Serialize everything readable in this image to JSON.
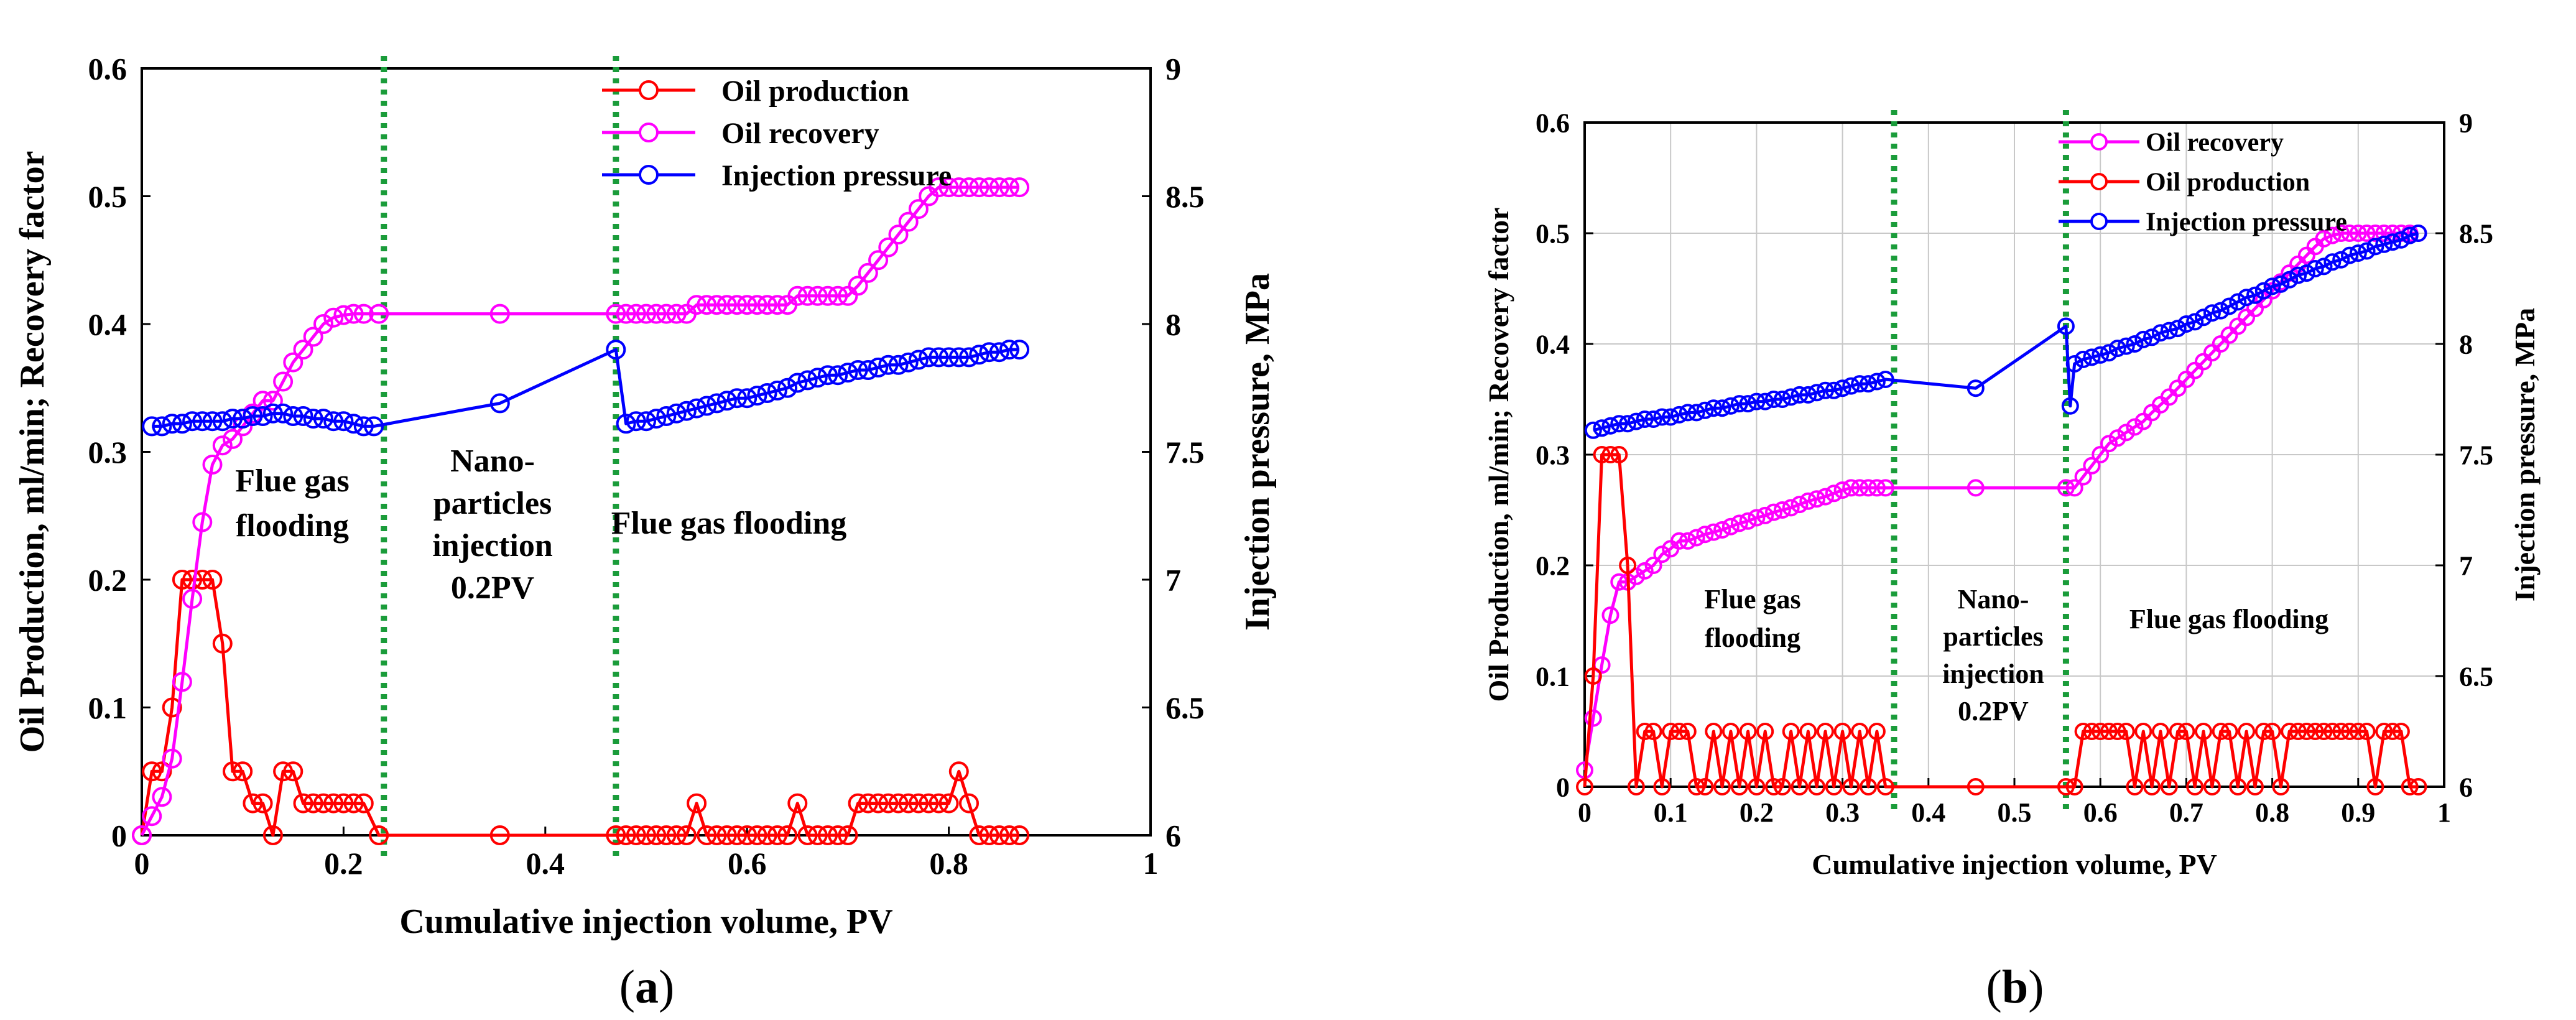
{
  "figure": {
    "panels": [
      {
        "id": "a",
        "panel_label_open": "(",
        "panel_label_letter": "a",
        "panel_label_close": ")"
      },
      {
        "id": "b",
        "panel_label_open": "(",
        "panel_label_letter": "b",
        "panel_label_close": ")"
      }
    ]
  },
  "chart_data": [
    {
      "type": "line",
      "panel": "a",
      "xlabel": "Cumulative injection volume, PV",
      "ylabel": "Oil Production, ml/min; Recovery factor",
      "y2label": "Injection pressure, MPa",
      "xlim": [
        0,
        1
      ],
      "ylim": [
        0,
        0.6
      ],
      "y2lim": [
        6,
        9
      ],
      "xticks": [
        "0",
        "0.2",
        "0.4",
        "0.6",
        "0.8",
        "1"
      ],
      "yticks": [
        "0",
        "0.1",
        "0.2",
        "0.3",
        "0.4",
        "0.5",
        "0.6"
      ],
      "y2ticks": [
        "6",
        "6.5",
        "7",
        "7.5",
        "8",
        "8.5",
        "9"
      ],
      "grid": false,
      "legend_position": "top-center",
      "dividers": [
        0.24,
        0.47
      ],
      "regions": [
        {
          "lines": [
            "Flue gas",
            "flooding"
          ]
        },
        {
          "lines": [
            "Nano-",
            "particles",
            "injection",
            "0.2PV"
          ]
        },
        {
          "lines": [
            "Flue gas flooding"
          ]
        }
      ],
      "legend": [
        "Oil production",
        "Oil recovery",
        "Injection pressure"
      ],
      "series": [
        {
          "name": "Oil production",
          "color": "#ff0000",
          "axis": "left",
          "x": [
            0,
            0.01,
            0.02,
            0.03,
            0.04,
            0.05,
            0.06,
            0.07,
            0.08,
            0.09,
            0.1,
            0.11,
            0.12,
            0.13,
            0.14,
            0.15,
            0.16,
            0.17,
            0.18,
            0.19,
            0.2,
            0.21,
            0.22,
            0.235,
            0.355,
            0.47,
            0.48,
            0.49,
            0.5,
            0.51,
            0.52,
            0.53,
            0.54,
            0.55,
            0.56,
            0.57,
            0.58,
            0.59,
            0.6,
            0.61,
            0.62,
            0.63,
            0.64,
            0.65,
            0.66,
            0.67,
            0.68,
            0.69,
            0.7,
            0.71,
            0.72,
            0.73,
            0.74,
            0.75,
            0.76,
            0.77,
            0.78,
            0.79,
            0.8,
            0.81,
            0.82,
            0.83,
            0.84,
            0.85,
            0.86,
            0.87
          ],
          "values": [
            0,
            0.05,
            0.05,
            0.1,
            0.2,
            0.2,
            0.2,
            0.2,
            0.15,
            0.05,
            0.05,
            0.025,
            0.025,
            0,
            0.05,
            0.05,
            0.025,
            0.025,
            0.025,
            0.025,
            0.025,
            0.025,
            0.025,
            0,
            0,
            0,
            0,
            0,
            0,
            0,
            0,
            0,
            0,
            0.025,
            0,
            0,
            0,
            0,
            0,
            0,
            0,
            0,
            0,
            0.025,
            0,
            0,
            0,
            0,
            0,
            0.025,
            0.025,
            0.025,
            0.025,
            0.025,
            0.025,
            0.025,
            0.025,
            0.025,
            0.025,
            0.05,
            0.025,
            0,
            0,
            0,
            0,
            0
          ]
        },
        {
          "name": "Oil recovery",
          "color": "#ff00ff",
          "axis": "left",
          "x": [
            0,
            0.01,
            0.02,
            0.03,
            0.04,
            0.05,
            0.06,
            0.07,
            0.08,
            0.09,
            0.1,
            0.11,
            0.12,
            0.13,
            0.14,
            0.15,
            0.16,
            0.17,
            0.18,
            0.19,
            0.2,
            0.21,
            0.22,
            0.235,
            0.355,
            0.47,
            0.48,
            0.49,
            0.5,
            0.51,
            0.52,
            0.53,
            0.54,
            0.55,
            0.56,
            0.57,
            0.58,
            0.59,
            0.6,
            0.61,
            0.62,
            0.63,
            0.64,
            0.65,
            0.66,
            0.67,
            0.68,
            0.69,
            0.7,
            0.71,
            0.72,
            0.73,
            0.74,
            0.75,
            0.76,
            0.77,
            0.78,
            0.79,
            0.8,
            0.81,
            0.82,
            0.83,
            0.84,
            0.85,
            0.86,
            0.87
          ],
          "values": [
            0,
            0.015,
            0.03,
            0.06,
            0.12,
            0.185,
            0.245,
            0.29,
            0.305,
            0.31,
            0.32,
            0.33,
            0.34,
            0.34,
            0.355,
            0.37,
            0.38,
            0.39,
            0.4,
            0.405,
            0.407,
            0.408,
            0.408,
            0.408,
            0.408,
            0.408,
            0.408,
            0.408,
            0.408,
            0.408,
            0.408,
            0.408,
            0.408,
            0.415,
            0.415,
            0.415,
            0.415,
            0.415,
            0.415,
            0.415,
            0.415,
            0.415,
            0.415,
            0.422,
            0.422,
            0.422,
            0.422,
            0.422,
            0.422,
            0.43,
            0.44,
            0.45,
            0.46,
            0.47,
            0.48,
            0.49,
            0.5,
            0.507,
            0.507,
            0.507,
            0.507,
            0.507,
            0.507,
            0.507,
            0.507,
            0.507
          ]
        },
        {
          "name": "Injection pressure",
          "color": "#0000ff",
          "axis": "right",
          "x": [
            0.01,
            0.02,
            0.03,
            0.04,
            0.05,
            0.06,
            0.07,
            0.08,
            0.09,
            0.1,
            0.11,
            0.12,
            0.13,
            0.14,
            0.15,
            0.16,
            0.17,
            0.18,
            0.19,
            0.2,
            0.21,
            0.22,
            0.23,
            0.355,
            0.47,
            0.48,
            0.49,
            0.5,
            0.51,
            0.52,
            0.53,
            0.54,
            0.55,
            0.56,
            0.57,
            0.58,
            0.59,
            0.6,
            0.61,
            0.62,
            0.63,
            0.64,
            0.65,
            0.66,
            0.67,
            0.68,
            0.69,
            0.7,
            0.71,
            0.72,
            0.73,
            0.74,
            0.75,
            0.76,
            0.77,
            0.78,
            0.79,
            0.8,
            0.81,
            0.82,
            0.83,
            0.84,
            0.85,
            0.86,
            0.87
          ],
          "values": [
            7.6,
            7.6,
            7.61,
            7.61,
            7.62,
            7.62,
            7.62,
            7.62,
            7.63,
            7.63,
            7.64,
            7.64,
            7.65,
            7.65,
            7.64,
            7.64,
            7.63,
            7.63,
            7.62,
            7.62,
            7.61,
            7.6,
            7.6,
            7.69,
            7.9,
            7.61,
            7.62,
            7.62,
            7.63,
            7.64,
            7.65,
            7.66,
            7.67,
            7.68,
            7.69,
            7.7,
            7.71,
            7.71,
            7.72,
            7.73,
            7.74,
            7.75,
            7.77,
            7.78,
            7.79,
            7.8,
            7.8,
            7.81,
            7.82,
            7.82,
            7.83,
            7.84,
            7.84,
            7.85,
            7.86,
            7.87,
            7.87,
            7.87,
            7.87,
            7.87,
            7.88,
            7.89,
            7.89,
            7.9,
            7.9
          ]
        }
      ]
    },
    {
      "type": "line",
      "panel": "b",
      "xlabel": "Cumulative injection volume, PV",
      "ylabel": "Oil Production, ml/min; Recovery factor",
      "y2label": "Injection pressure, MPa",
      "xlim": [
        0,
        1
      ],
      "ylim": [
        0,
        0.6
      ],
      "y2lim": [
        6,
        9
      ],
      "xticks": [
        "0",
        "0.1",
        "0.2",
        "0.3",
        "0.4",
        "0.5",
        "0.6",
        "0.7",
        "0.8",
        "0.9",
        "1"
      ],
      "yticks": [
        "0",
        "0.1",
        "0.2",
        "0.3",
        "0.4",
        "0.5",
        "0.6"
      ],
      "y2ticks": [
        "6",
        "6.5",
        "7",
        "7.5",
        "8",
        "8.5",
        "9"
      ],
      "grid": true,
      "legend_position": "top-center",
      "dividers": [
        0.36,
        0.56
      ],
      "regions": [
        {
          "lines": [
            "Flue gas",
            "flooding"
          ]
        },
        {
          "lines": [
            "Nano-",
            "particles",
            "injection",
            "0.2PV"
          ]
        },
        {
          "lines": [
            "Flue gas flooding"
          ]
        }
      ],
      "legend": [
        "Oil recovery",
        "Oil production",
        "Injection pressure"
      ],
      "series": [
        {
          "name": "Oil recovery",
          "color": "#ff00ff",
          "axis": "left",
          "x": [
            0,
            0.01,
            0.02,
            0.03,
            0.04,
            0.05,
            0.06,
            0.07,
            0.08,
            0.09,
            0.1,
            0.11,
            0.12,
            0.13,
            0.14,
            0.15,
            0.16,
            0.17,
            0.18,
            0.19,
            0.2,
            0.21,
            0.22,
            0.23,
            0.24,
            0.25,
            0.26,
            0.27,
            0.28,
            0.29,
            0.3,
            0.31,
            0.32,
            0.33,
            0.34,
            0.35,
            0.455,
            0.56,
            0.57,
            0.58,
            0.59,
            0.6,
            0.61,
            0.62,
            0.63,
            0.64,
            0.65,
            0.66,
            0.67,
            0.68,
            0.69,
            0.7,
            0.71,
            0.72,
            0.73,
            0.74,
            0.75,
            0.76,
            0.77,
            0.78,
            0.79,
            0.8,
            0.81,
            0.82,
            0.83,
            0.84,
            0.85,
            0.86,
            0.87,
            0.88,
            0.89,
            0.9,
            0.91,
            0.92,
            0.93,
            0.94,
            0.95,
            0.96,
            0.97
          ],
          "values": [
            0.015,
            0.062,
            0.11,
            0.155,
            0.185,
            0.185,
            0.19,
            0.195,
            0.2,
            0.21,
            0.215,
            0.222,
            0.222,
            0.225,
            0.228,
            0.23,
            0.232,
            0.235,
            0.238,
            0.24,
            0.243,
            0.245,
            0.248,
            0.25,
            0.252,
            0.255,
            0.258,
            0.26,
            0.262,
            0.265,
            0.268,
            0.27,
            0.27,
            0.27,
            0.27,
            0.27,
            0.27,
            0.27,
            0.27,
            0.28,
            0.29,
            0.3,
            0.31,
            0.315,
            0.32,
            0.325,
            0.33,
            0.338,
            0.345,
            0.352,
            0.36,
            0.368,
            0.376,
            0.384,
            0.392,
            0.4,
            0.408,
            0.416,
            0.424,
            0.432,
            0.44,
            0.448,
            0.456,
            0.464,
            0.472,
            0.48,
            0.488,
            0.495,
            0.498,
            0.5,
            0.5,
            0.5,
            0.5,
            0.5,
            0.5,
            0.5,
            0.5,
            0.5,
            0.5
          ]
        },
        {
          "name": "Oil production",
          "color": "#ff0000",
          "axis": "left",
          "x": [
            0,
            0.01,
            0.02,
            0.03,
            0.04,
            0.05,
            0.06,
            0.07,
            0.08,
            0.09,
            0.1,
            0.11,
            0.12,
            0.13,
            0.14,
            0.15,
            0.16,
            0.17,
            0.18,
            0.19,
            0.2,
            0.21,
            0.22,
            0.23,
            0.24,
            0.25,
            0.26,
            0.27,
            0.28,
            0.29,
            0.3,
            0.31,
            0.32,
            0.33,
            0.34,
            0.35,
            0.455,
            0.56,
            0.57,
            0.58,
            0.59,
            0.6,
            0.61,
            0.62,
            0.63,
            0.64,
            0.65,
            0.66,
            0.67,
            0.68,
            0.69,
            0.7,
            0.71,
            0.72,
            0.73,
            0.74,
            0.75,
            0.76,
            0.77,
            0.78,
            0.79,
            0.8,
            0.81,
            0.82,
            0.83,
            0.84,
            0.85,
            0.86,
            0.87,
            0.88,
            0.89,
            0.9,
            0.91,
            0.92,
            0.93,
            0.94,
            0.95,
            0.96,
            0.97
          ],
          "values": [
            0,
            0.1,
            0.3,
            0.3,
            0.3,
            0.2,
            0,
            0.05,
            0.05,
            0,
            0.05,
            0.05,
            0.05,
            0,
            0,
            0.05,
            0,
            0.05,
            0,
            0.05,
            0,
            0.05,
            0,
            0,
            0.05,
            0,
            0.05,
            0,
            0.05,
            0,
            0.05,
            0,
            0.05,
            0,
            0.05,
            0,
            0,
            0,
            0,
            0.05,
            0.05,
            0.05,
            0.05,
            0.05,
            0.05,
            0,
            0.05,
            0,
            0.05,
            0,
            0.05,
            0.05,
            0,
            0.05,
            0,
            0.05,
            0.05,
            0,
            0.05,
            0,
            0.05,
            0.05,
            0,
            0.05,
            0.05,
            0.05,
            0.05,
            0.05,
            0.05,
            0.05,
            0.05,
            0.05,
            0.05,
            0,
            0.05,
            0.05,
            0.05,
            0,
            0
          ]
        },
        {
          "name": "Injection pressure",
          "color": "#0000ff",
          "axis": "right",
          "x": [
            0.01,
            0.02,
            0.03,
            0.04,
            0.05,
            0.06,
            0.07,
            0.08,
            0.09,
            0.1,
            0.11,
            0.12,
            0.13,
            0.14,
            0.15,
            0.16,
            0.17,
            0.18,
            0.19,
            0.2,
            0.21,
            0.22,
            0.23,
            0.24,
            0.25,
            0.26,
            0.27,
            0.28,
            0.29,
            0.3,
            0.31,
            0.32,
            0.33,
            0.34,
            0.35,
            0.455,
            0.56,
            0.565,
            0.57,
            0.58,
            0.59,
            0.6,
            0.61,
            0.62,
            0.63,
            0.64,
            0.65,
            0.66,
            0.67,
            0.68,
            0.69,
            0.7,
            0.71,
            0.72,
            0.73,
            0.74,
            0.75,
            0.76,
            0.77,
            0.78,
            0.79,
            0.8,
            0.81,
            0.82,
            0.83,
            0.84,
            0.85,
            0.86,
            0.87,
            0.88,
            0.89,
            0.9,
            0.91,
            0.92,
            0.93,
            0.94,
            0.95,
            0.96,
            0.97
          ],
          "values": [
            7.61,
            7.62,
            7.63,
            7.64,
            7.64,
            7.65,
            7.66,
            7.66,
            7.67,
            7.67,
            7.68,
            7.69,
            7.69,
            7.7,
            7.71,
            7.71,
            7.72,
            7.73,
            7.73,
            7.74,
            7.74,
            7.75,
            7.75,
            7.76,
            7.77,
            7.77,
            7.78,
            7.79,
            7.79,
            7.8,
            7.81,
            7.82,
            7.82,
            7.83,
            7.84,
            7.8,
            8.08,
            7.72,
            7.91,
            7.93,
            7.94,
            7.95,
            7.96,
            7.98,
            7.99,
            8,
            8.02,
            8.03,
            8.05,
            8.06,
            8.07,
            8.09,
            8.1,
            8.12,
            8.14,
            8.15,
            8.17,
            8.19,
            8.21,
            8.22,
            8.24,
            8.26,
            8.27,
            8.29,
            8.31,
            8.32,
            8.34,
            8.35,
            8.37,
            8.38,
            8.4,
            8.41,
            8.42,
            8.44,
            8.45,
            8.46,
            8.47,
            8.49,
            8.5
          ]
        }
      ]
    }
  ]
}
